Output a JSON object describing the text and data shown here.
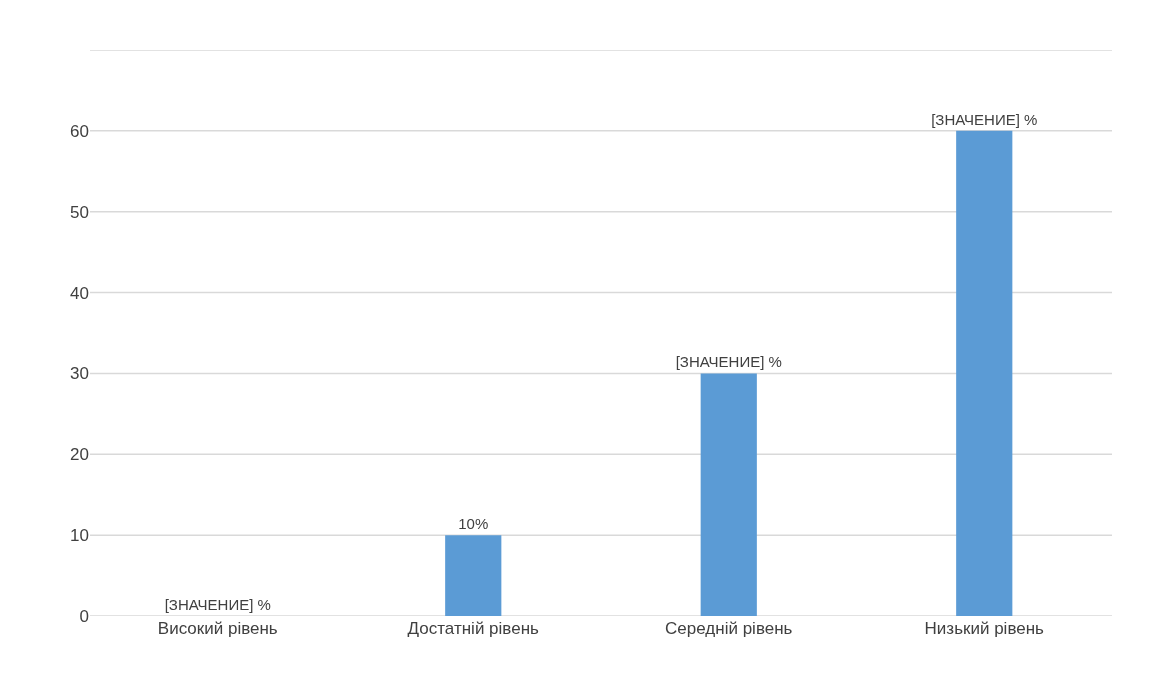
{
  "chart_data": {
    "type": "bar",
    "categories": [
      "Високий рівень",
      "Достатній рівень",
      "Середній рівень",
      "Низький рівень"
    ],
    "values": [
      0,
      10,
      30,
      60
    ],
    "value_labels": [
      "[ЗНАЧЕНИЕ] %",
      "10%",
      "[ЗНАЧЕНИЕ] %",
      "[ЗНАЧЕНИЕ] %"
    ],
    "color": "#5b9bd5",
    "ylim": [
      0,
      70
    ],
    "yticks": [
      0,
      10,
      20,
      30,
      40,
      50,
      60,
      {
        "value": 70,
        "label": null
      }
    ],
    "grid": "y",
    "legend": false
  }
}
